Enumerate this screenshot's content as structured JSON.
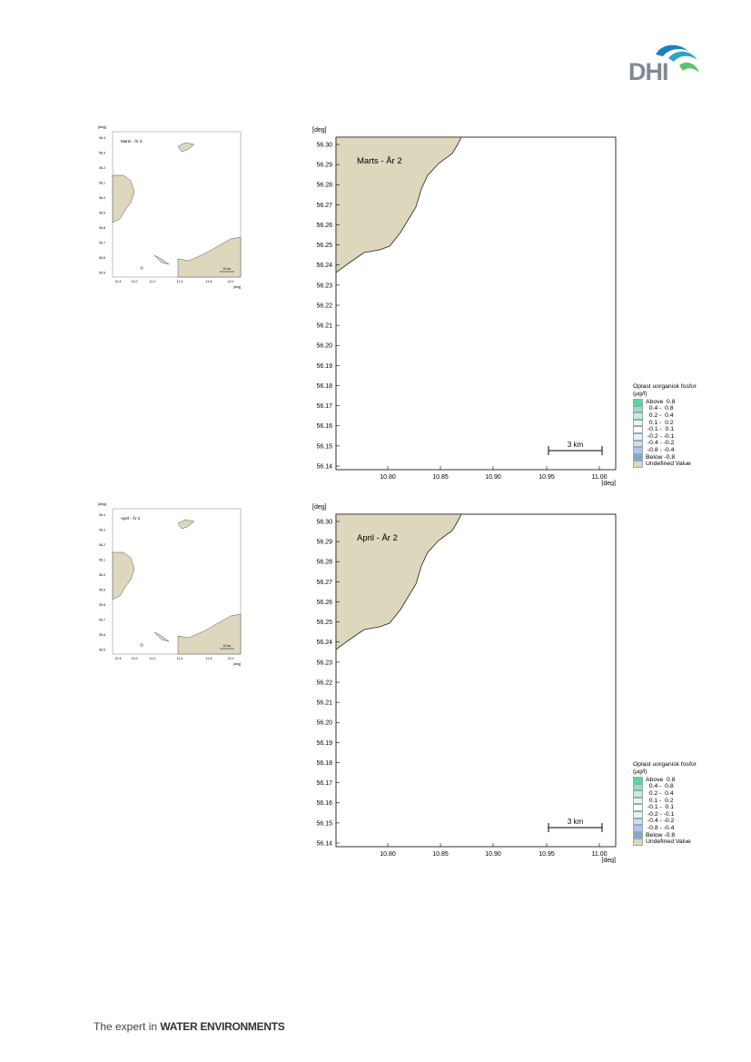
{
  "logo": {
    "text": "DHI"
  },
  "footer": {
    "prefix": "The expert in ",
    "emphasis": "WATER ENVIRONMENTS"
  },
  "panels": [
    {
      "main_title": "Marts - År 2",
      "thumb_title": "Marts - År 2"
    },
    {
      "main_title": "April - År 2",
      "thumb_title": "April - År 2"
    }
  ],
  "map": {
    "y_unit": "[deg]",
    "x_unit": "[deg]",
    "y_ticks": [
      "56.30",
      "56.29",
      "56.28",
      "56.27",
      "56.26",
      "56.25",
      "56.24",
      "56.23",
      "56.22",
      "56.21",
      "56.20",
      "56.19",
      "56.18",
      "56.17",
      "56.16",
      "56.15",
      "56.14"
    ],
    "x_ticks": [
      "10.80",
      "10.85",
      "10.90",
      "10.95",
      "11.00"
    ],
    "scale_bar": "3 km",
    "land_color": "#dcd7bd"
  },
  "thumb": {
    "y_unit": "[deg]",
    "x_unit": "[deg]",
    "y_ticks": [
      "56.4",
      "56.3",
      "56.2",
      "56.1",
      "56.0",
      "55.9",
      "55.8",
      "55.7",
      "55.6",
      "55.5"
    ],
    "x_ticks": [
      "10.4",
      "11.0",
      "11.2",
      "11.4",
      "11.8",
      "12.0"
    ],
    "scale_bar": "10 km",
    "legend_title": "Oplast uorganisk fosfor"
  },
  "legend": {
    "title": "Oplast uorganisk fosfor",
    "unit": "(µg/l)",
    "items": [
      {
        "label": "Above  0.8",
        "color": "#5fd3a0"
      },
      {
        "label": "  0.4 -  0.8",
        "color": "#8fe3c0"
      },
      {
        "label": "  0.2 -  0.4",
        "color": "#bff0dc"
      },
      {
        "label": "  0.1 -  0.2",
        "color": "#e2f8ee"
      },
      {
        "label": " -0.1 -  0.1",
        "color": "#ffffff"
      },
      {
        "label": " -0.2 - -0.1",
        "color": "#e8eef8"
      },
      {
        "label": " -0.4 - -0.2",
        "color": "#cfdcf2"
      },
      {
        "label": " -0.8 - -0.4",
        "color": "#aec5ec"
      },
      {
        "label": "Below -0.8",
        "color": "#7aa6e3"
      },
      {
        "label": "Undefined Value",
        "color": "#dcd7bd"
      }
    ]
  }
}
